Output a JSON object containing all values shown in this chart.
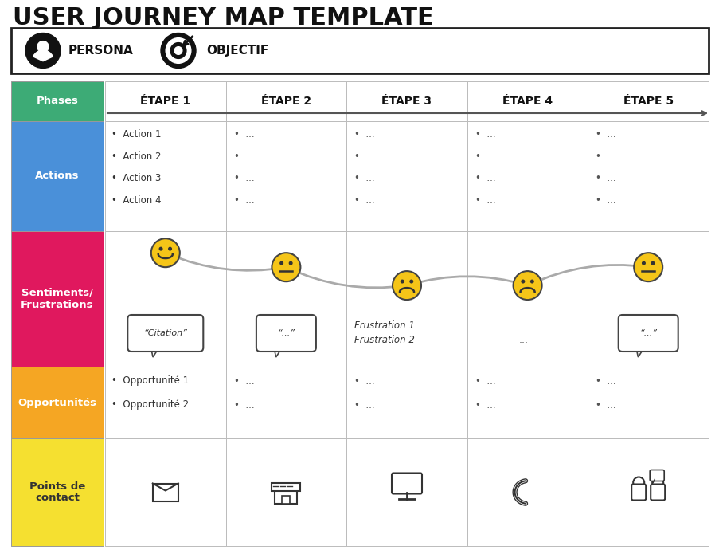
{
  "title": "USER JOURNEY MAP TEMPLATE",
  "persona_label": "PERSONA",
  "objectif_label": "OBJECTIF",
  "stages": [
    "ÉTAPE 1",
    "ÉTAPE 2",
    "ÉTAPE 3",
    "ÉTAPE 4",
    "ÉTAPE 5"
  ],
  "row_labels": [
    "Phases",
    "Actions",
    "Sentiments/\nFrustrations",
    "Opportunités",
    "Points de\ncontact"
  ],
  "row_colors": [
    "#3dab76",
    "#4a90d9",
    "#e0185e",
    "#f5a623",
    "#f5e030"
  ],
  "row_text_colors": [
    "#ffffff",
    "#ffffff",
    "#ffffff",
    "#ffffff",
    "#333333"
  ],
  "actions_col1": [
    "Action 1",
    "Action 2",
    "Action 3",
    "Action 4"
  ],
  "opportunities_col1": [
    "Opportunité 1",
    "Opportunité 2"
  ],
  "sentiments": [
    0.85,
    0.3,
    -0.4,
    -0.4,
    0.3
  ],
  "citations": [
    "“Citation”",
    "“...”",
    null,
    null,
    "“...”"
  ],
  "frustrations_col3": [
    "Frustration 1",
    "Frustration 2"
  ],
  "frustrations_col4": [
    "...",
    "..."
  ],
  "bg_color": "#ffffff",
  "title_color": "#111111",
  "grid_color": "#cccccc"
}
